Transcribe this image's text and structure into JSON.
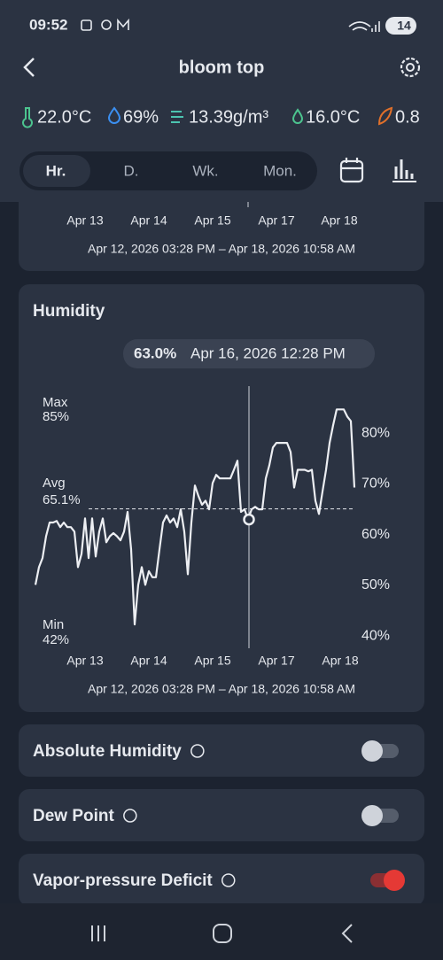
{
  "status_bar": {
    "time": "09:52",
    "battery": "14"
  },
  "header": {
    "title": "bloom top"
  },
  "readings": [
    "22.0°C",
    "69%",
    "13.39g/m³",
    "16.0°C",
    "0.8"
  ],
  "tabs": {
    "labels": [
      "Hr.",
      "D.",
      "Wk.",
      "Mon."
    ],
    "selected": 0
  },
  "top_card": {
    "x_labels": [
      "Apr 13",
      "Apr 14",
      "Apr 15",
      "Apr 17",
      "Apr 18"
    ],
    "range": "Apr 12, 2026 03:28 PM – Apr 18, 2026 10:58 AM"
  },
  "chart_data": {
    "type": "line",
    "title": "Humidity",
    "color": "#eceef2",
    "categories": [
      null,
      null,
      null,
      null,
      null,
      null,
      null,
      null,
      null,
      null,
      null,
      null,
      null,
      null,
      "Apr 13",
      null,
      null,
      null,
      null,
      null,
      null,
      null,
      null,
      null,
      null,
      null,
      null,
      null,
      null,
      null,
      null,
      null,
      "Apr 14",
      null,
      null,
      null,
      null,
      null,
      null,
      null,
      null,
      null,
      null,
      null,
      null,
      null,
      null,
      null,
      null,
      null,
      "Apr 15",
      null,
      null,
      null,
      null,
      null,
      null,
      null,
      null,
      null,
      null,
      null,
      null,
      null,
      null,
      null,
      null,
      null,
      "Apr 17",
      null,
      null,
      null,
      null,
      null,
      null,
      null,
      null,
      null,
      null,
      null,
      null,
      null,
      null,
      null,
      null,
      null,
      "Apr 18",
      null,
      null,
      null,
      null
    ],
    "values": [
      50.1,
      53.6,
      55.4,
      59.7,
      62.4,
      62.4,
      62.7,
      61.5,
      62.4,
      61.5,
      61.5,
      60.6,
      53.6,
      56.2,
      63.2,
      55.4,
      63.2,
      55.7,
      60.6,
      63.2,
      58.5,
      59.7,
      60.3,
      59.7,
      58.9,
      60.6,
      64.5,
      57.1,
      42.3,
      50.1,
      53.6,
      50.1,
      52.8,
      51.6,
      51.6,
      57.1,
      62.4,
      63.8,
      62.4,
      63.2,
      61.5,
      65.0,
      60.6,
      52.2,
      62.4,
      69.7,
      67.6,
      65.9,
      66.7,
      65.0,
      70.2,
      71.8,
      71.1,
      71.1,
      71.1,
      71.1,
      72.8,
      74.6,
      64.5,
      65.0,
      63.0,
      65.0,
      65.5,
      65.0,
      65.0,
      71.1,
      73.7,
      77.2,
      78.1,
      78.1,
      78.1,
      78.1,
      76.3,
      69.3,
      72.8,
      72.8,
      72.8,
      72.5,
      72.8,
      66.7,
      64.1,
      68.5,
      72.8,
      78.1,
      81.6,
      84.7,
      84.7,
      84.7,
      83.3,
      82.4,
      69.3
    ],
    "ylim": [
      37.6,
      89.3
    ],
    "yticks": [
      {
        "value": 40,
        "label": "40%"
      },
      {
        "value": 50,
        "label": "50%"
      },
      {
        "value": 60,
        "label": "60%"
      },
      {
        "value": 70,
        "label": "70%"
      },
      {
        "value": 80,
        "label": "80%"
      }
    ],
    "stats": {
      "labels": [
        "Max",
        "Avg",
        "Min"
      ],
      "values": [
        85,
        65.1,
        42
      ],
      "value_labels": [
        "85%",
        "65.1%",
        "42%"
      ]
    },
    "cursor": {
      "value": 63.0,
      "value_label": "63.0%",
      "label": "Apr 16, 2026 12:28 PM"
    },
    "range": "Apr 12, 2026 03:28 PM – Apr 18, 2026 10:58 AM"
  },
  "toggles": [
    {
      "label": "Absolute Humidity",
      "on": false
    },
    {
      "label": "Dew Point",
      "on": false
    },
    {
      "label": "Vapor-pressure Deficit",
      "on": true
    }
  ]
}
